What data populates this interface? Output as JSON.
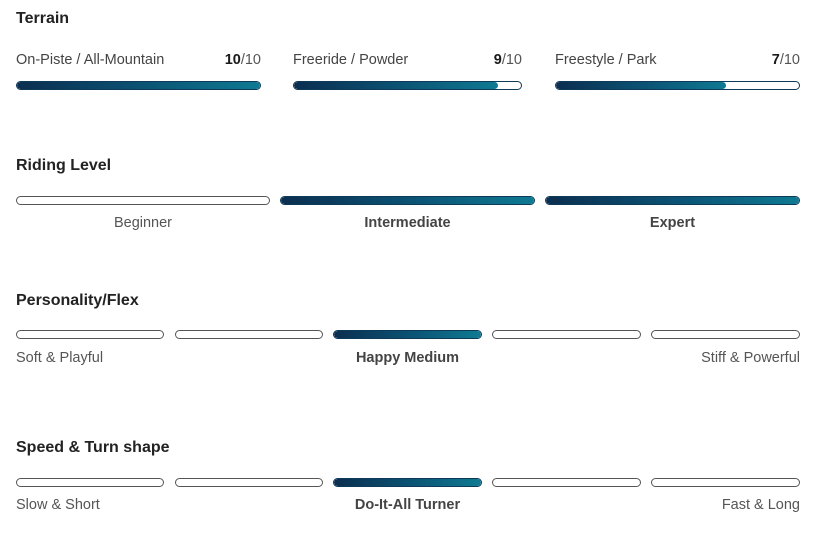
{
  "terrain": {
    "title": "Terrain",
    "items": [
      {
        "label": "On-Piste / All-Mountain",
        "score": "10",
        "max": "/10",
        "fraction": 1.0
      },
      {
        "label": "Freeride / Powder",
        "score": "9",
        "max": "/10",
        "fraction": 0.9
      },
      {
        "label": "Freestyle / Park",
        "score": "7",
        "max": "/10",
        "fraction": 0.7
      }
    ]
  },
  "riding_level": {
    "title": "Riding Level",
    "options": [
      {
        "label": "Beginner",
        "active": false
      },
      {
        "label": "Intermediate",
        "active": true
      },
      {
        "label": "Expert",
        "active": true
      }
    ]
  },
  "flex": {
    "title": "Personality/Flex",
    "left_label": "Soft & Playful",
    "center_label": "Happy Medium",
    "right_label": "Stiff & Powerful",
    "active_segment": 3,
    "segment_count": 5
  },
  "speed": {
    "title": "Speed & Turn shape",
    "left_label": "Slow & Short",
    "center_label": "Do-It-All Turner",
    "right_label": "Fast & Long",
    "active_segment": 3,
    "segment_count": 5
  },
  "colors": {
    "fill_start": "#0b2e4f",
    "fill_end": "#0f7a92",
    "outline": "#555555"
  }
}
